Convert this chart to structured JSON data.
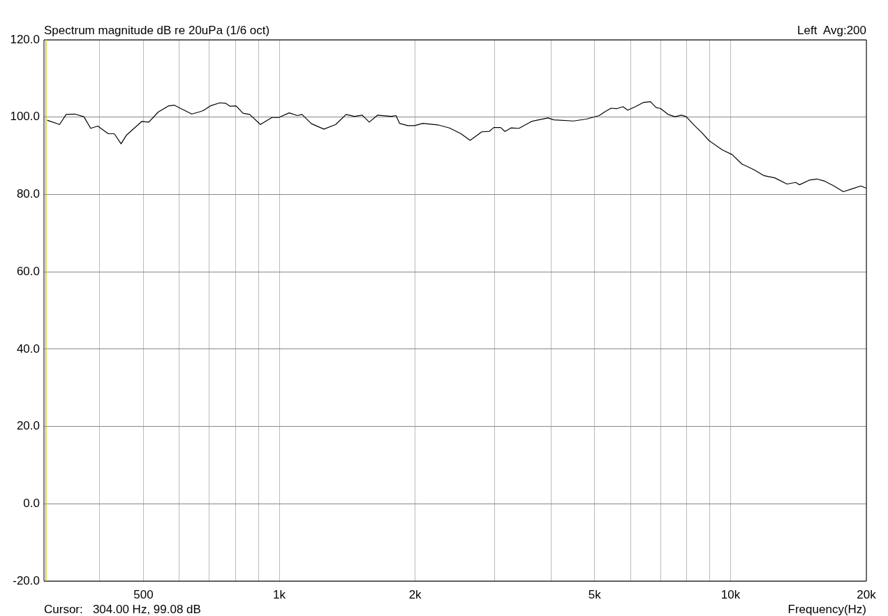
{
  "chart_data": {
    "type": "line",
    "title": "Spectrum magnitude dB re 20uPa (1/6 oct)",
    "xlabel": "Frequency(Hz)",
    "annotations": [
      "Left  Avg:200",
      "Cursor:   304.00 Hz, 99.08 dB"
    ],
    "log": "x",
    "grid": true,
    "legend": false,
    "marker": "none",
    "line_style": "solid",
    "xlim": [
      301,
      20000
    ],
    "xticks": [
      {
        "value": 400,
        "label": null
      },
      {
        "value": 500,
        "label": "500"
      },
      {
        "value": 600,
        "label": null
      },
      {
        "value": 700,
        "label": null
      },
      {
        "value": 800,
        "label": null
      },
      {
        "value": 900,
        "label": null
      },
      {
        "value": 1000,
        "label": "1k"
      },
      {
        "value": 2000,
        "label": "2k"
      },
      {
        "value": 3000,
        "label": null
      },
      {
        "value": 4000,
        "label": null
      },
      {
        "value": 5000,
        "label": "5k"
      },
      {
        "value": 6000,
        "label": null
      },
      {
        "value": 7000,
        "label": null
      },
      {
        "value": 8000,
        "label": null
      },
      {
        "value": 9000,
        "label": null
      },
      {
        "value": 10000,
        "label": "10k"
      },
      {
        "value": 20000,
        "label": "20k"
      }
    ],
    "ylim": [
      -20,
      120
    ],
    "yticks": [
      {
        "value": -20,
        "label": "-20.0"
      },
      {
        "value": 0,
        "label": "0.0"
      },
      {
        "value": 20,
        "label": "20.0"
      },
      {
        "value": 40,
        "label": "40.0"
      },
      {
        "value": 60,
        "label": "60.0"
      },
      {
        "value": 80,
        "label": "80.0"
      },
      {
        "value": 100,
        "label": "100.0"
      },
      {
        "value": 120,
        "label": "120.0"
      }
    ],
    "ref_lines": [
      {
        "axis": "x",
        "value": 304,
        "color": "#c8c800"
      }
    ],
    "series": [
      {
        "color": "#000000",
        "x": [
          306,
          326,
          337,
          352,
          369,
          382,
          396,
          418,
          431,
          446,
          459,
          496,
          514,
          539,
          568,
          585,
          640,
          663,
          679,
          703,
          738,
          760,
          778,
          802,
          831,
          860,
          908,
          963,
          997,
          1052,
          1097,
          1123,
          1178,
          1256,
          1334,
          1406,
          1466,
          1527,
          1583,
          1650,
          1772,
          1814,
          1847,
          1926,
          1995,
          2080,
          2246,
          2383,
          2528,
          2648,
          2810,
          2918,
          2988,
          3095,
          3163,
          3262,
          3398,
          3626,
          3939,
          4060,
          4487,
          4792,
          5116,
          5268,
          5433,
          5600,
          5776,
          5918,
          6154,
          6408,
          6645,
          6839,
          7003,
          7269,
          7537,
          7779,
          7979,
          8324,
          8637,
          8966,
          9597,
          10085,
          10595,
          11270,
          11840,
          12528,
          13339,
          13950,
          14210,
          14944,
          15530,
          16120,
          16950,
          17780,
          18540,
          19460,
          20000
        ],
        "values": [
          99.2,
          98.1,
          100.7,
          100.8,
          100.1,
          97.1,
          97.7,
          95.7,
          95.7,
          93.1,
          95.4,
          98.9,
          98.7,
          101.3,
          102.9,
          103.1,
          100.8,
          101.3,
          101.7,
          102.9,
          103.7,
          103.6,
          102.8,
          102.9,
          101.0,
          100.7,
          98.1,
          99.9,
          99.9,
          101.1,
          100.4,
          100.7,
          98.3,
          96.9,
          98.1,
          100.7,
          100.2,
          100.5,
          98.7,
          100.5,
          100.2,
          100.4,
          98.4,
          97.8,
          97.8,
          98.4,
          98.0,
          97.2,
          95.7,
          94.0,
          96.2,
          96.3,
          97.3,
          97.3,
          96.3,
          97.2,
          97.1,
          98.9,
          99.8,
          99.3,
          99.0,
          99.5,
          100.4,
          101.4,
          102.3,
          102.2,
          102.7,
          101.8,
          102.7,
          103.8,
          104.0,
          102.5,
          102.2,
          100.7,
          100.1,
          100.5,
          100.1,
          97.8,
          96.0,
          93.9,
          91.5,
          90.3,
          87.9,
          86.4,
          84.9,
          84.3,
          82.7,
          83.1,
          82.5,
          83.7,
          84.0,
          83.5,
          82.2,
          80.7,
          81.4,
          82.2,
          81.6
        ]
      }
    ]
  }
}
